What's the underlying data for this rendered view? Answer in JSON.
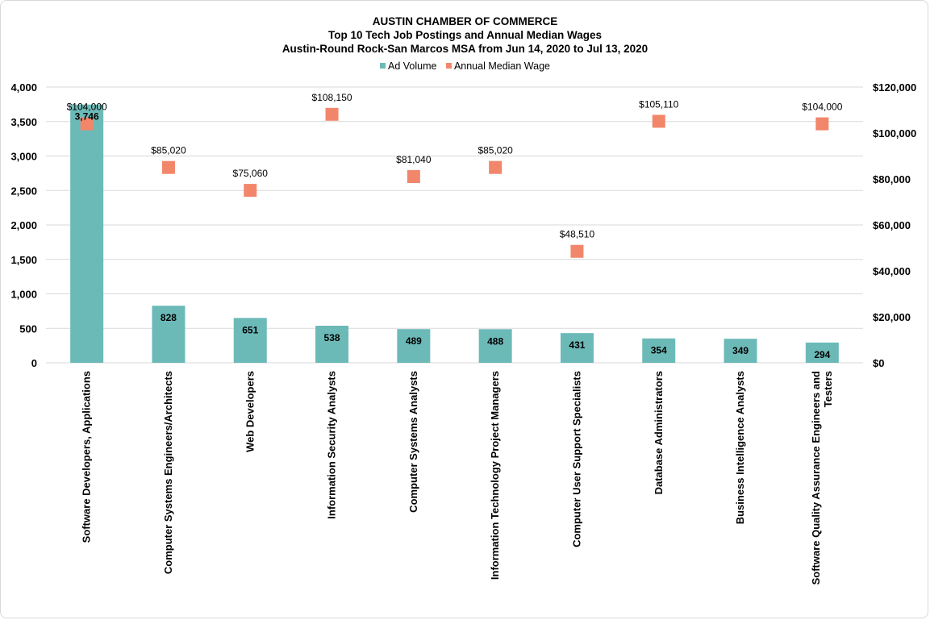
{
  "chart_data": {
    "type": "bar",
    "title": "AUSTIN CHAMBER OF COMMERCE",
    "subtitle_1": "Top 10 Tech Job Postings and Annual  Median Wages",
    "subtitle_2": "Austin-Round Rock-San Marcos MSA from Jun 14, 2020 to Jul 13, 2020",
    "categories": [
      "Software Developers, Applications",
      "Computer Systems Engineers/Architects",
      "Web Developers",
      "Information Security Analysts",
      "Computer Systems Analysts",
      "Information Technology Project Managers",
      "Computer User Support Specialists",
      "Database Administrators",
      "Business Intelligence Analysts",
      [
        "Software Quality Assurance Engineers and",
        "Testers"
      ]
    ],
    "series": [
      {
        "name": "Ad Volume",
        "type": "bar",
        "axis": "left",
        "color": "#6cbab8",
        "values": [
          3746,
          828,
          651,
          538,
          489,
          488,
          431,
          354,
          349,
          294
        ],
        "labels": [
          "3,746",
          "828",
          "651",
          "538",
          "489",
          "488",
          "431",
          "354",
          "349",
          "294"
        ]
      },
      {
        "name": "Annual Median Wage",
        "type": "scatter",
        "axis": "right",
        "color": "#f2866a",
        "values": [
          104000,
          85020,
          75060,
          108150,
          81040,
          85020,
          48510,
          105110,
          null,
          104000
        ],
        "labels": [
          "$104,000",
          "$85,020",
          "$75,060",
          "$108,150",
          "$81,040",
          "$85,020",
          "$48,510",
          "$105,110",
          null,
          "$104,000"
        ]
      }
    ],
    "y_left": {
      "ylim": [
        0,
        4000
      ],
      "ticks": [
        0,
        500,
        1000,
        1500,
        2000,
        2500,
        3000,
        3500,
        4000
      ],
      "tick_labels": [
        "0",
        "500",
        "1,000",
        "1,500",
        "2,000",
        "2,500",
        "3,000",
        "3,500",
        "4,000"
      ]
    },
    "y_right": {
      "ylim": [
        0,
        120000
      ],
      "ticks": [
        0,
        20000,
        40000,
        60000,
        80000,
        100000,
        120000
      ],
      "tick_labels": [
        "$0",
        "$20,000",
        "$40,000",
        "$60,000",
        "$80,000",
        "$100,000",
        "$120,000"
      ]
    },
    "grid": true,
    "legend_position": "top-center"
  }
}
